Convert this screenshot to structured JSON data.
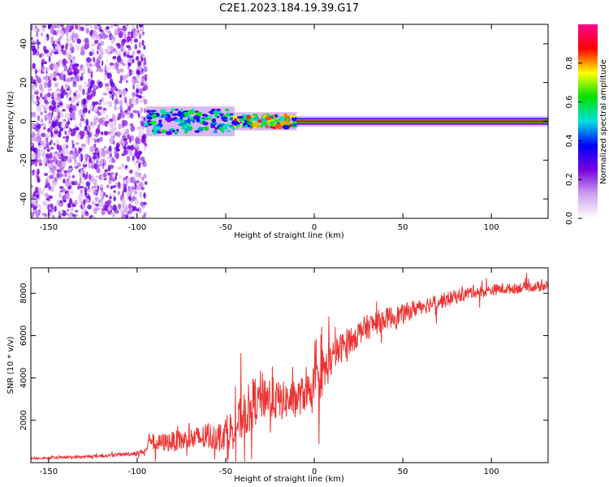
{
  "figure_title": "C2E1.2023.184.19.39.G17",
  "chart_data": [
    {
      "type": "heatmap",
      "xlabel": "Height of straight line (km)",
      "ylabel": "Frequency (Hz)",
      "xlim": [
        -160,
        132
      ],
      "ylim": [
        -50,
        50
      ],
      "x_ticks": [
        -150,
        -100,
        -50,
        0,
        50,
        100
      ],
      "y_ticks": [
        -40,
        -20,
        0,
        20,
        40
      ],
      "colorbar": {
        "label": "Normalized spectral amplitude",
        "range": [
          0,
          1
        ],
        "ticks": [
          0.0,
          0.2,
          0.4,
          0.6,
          0.8
        ],
        "colors": [
          "#ffffff",
          "#d0a0f0",
          "#7a00e0",
          "#0000ff",
          "#00e0e0",
          "#00e000",
          "#ffff00",
          "#ff0000",
          "#ff0090"
        ]
      },
      "regions": [
        {
          "x_range": [
            -160,
            -95
          ],
          "frequency_range": [
            -50,
            50
          ],
          "amplitude": 0.15,
          "character": "scattered noise"
        },
        {
          "x_range": [
            -95,
            -45
          ],
          "frequency_range": [
            -6,
            6
          ],
          "amplitude": 0.5,
          "character": "broad band"
        },
        {
          "x_range": [
            -45,
            -10
          ],
          "frequency_range": [
            -3,
            3
          ],
          "amplitude": 0.7,
          "character": "narrowing line"
        },
        {
          "x_range": [
            -10,
            132
          ],
          "frequency_range": [
            -1,
            1
          ],
          "amplitude": 0.9,
          "character": "narrow line at 0 Hz"
        }
      ]
    },
    {
      "type": "line",
      "xlabel": "Height of straight line (km)",
      "ylabel": "SNR (10 * v/v)",
      "xlim": [
        -160,
        132
      ],
      "ylim": [
        0,
        9200
      ],
      "x_ticks": [
        -150,
        -100,
        -50,
        0,
        50,
        100
      ],
      "y_ticks": [
        2000,
        4000,
        6000,
        8000
      ],
      "color": "#ee3333",
      "series": [
        {
          "x": [
            -160,
            -150,
            -140,
            -130,
            -120,
            -110,
            -100,
            -95,
            -93,
            -90,
            -85,
            -80,
            -75,
            -70,
            -65,
            -60,
            -55,
            -50,
            -45,
            -40,
            -35,
            -30,
            -25,
            -20,
            -15,
            -10,
            -5,
            0,
            5,
            10,
            15,
            20,
            25,
            30,
            35,
            40,
            45,
            50,
            55,
            60,
            65,
            70,
            75,
            80,
            85,
            90,
            95,
            100,
            105,
            110,
            115,
            120,
            125,
            132
          ],
          "y": [
            200,
            220,
            250,
            280,
            320,
            380,
            450,
            550,
            1200,
            900,
            950,
            1000,
            1050,
            1100,
            1150,
            1200,
            1300,
            1400,
            1700,
            2200,
            2800,
            3200,
            3100,
            2900,
            2950,
            3000,
            3300,
            3600,
            4200,
            4900,
            5400,
            5800,
            6100,
            6400,
            6600,
            6800,
            6900,
            7000,
            7200,
            7400,
            7500,
            7600,
            7700,
            7850,
            7950,
            8100,
            8050,
            8150,
            8200,
            8200,
            8250,
            8300,
            8300,
            8350
          ],
          "noise": [
            60,
            60,
            70,
            80,
            90,
            100,
            120,
            150,
            400,
            500,
            550,
            600,
            650,
            700,
            750,
            800,
            900,
            1000,
            1200,
            1400,
            1500,
            1500,
            1300,
            1200,
            1100,
            1100,
            1100,
            1200,
            1300,
            1000,
            900,
            850,
            800,
            750,
            700,
            650,
            650,
            600,
            550,
            500,
            500,
            450,
            450,
            420,
            400,
            380,
            360,
            340,
            330,
            320,
            310,
            300,
            300,
            300
          ]
        }
      ]
    }
  ]
}
